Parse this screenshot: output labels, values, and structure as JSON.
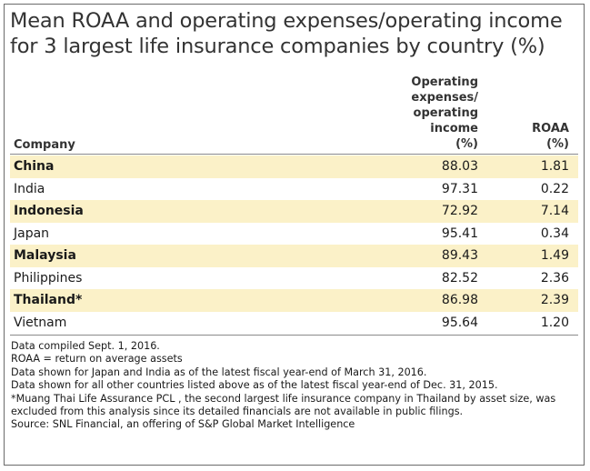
{
  "title_lines": [
    "Mean ROAA and operating expenses/operating income",
    "for 3 largest life insurance companies by country (%)"
  ],
  "chart_data": {
    "type": "table",
    "title": "Mean ROAA and operating expenses/operating income for 3 largest life insurance companies by country (%)",
    "columns": {
      "company": "Company",
      "opex": [
        "Operating",
        "expenses/",
        "operating",
        "income",
        "(%)"
      ],
      "roaa": [
        "ROAA",
        "(%)"
      ]
    },
    "rows": [
      {
        "company": "China",
        "opex": "88.03",
        "roaa": "1.81"
      },
      {
        "company": "India",
        "opex": "97.31",
        "roaa": "0.22"
      },
      {
        "company": "Indonesia",
        "opex": "72.92",
        "roaa": "7.14"
      },
      {
        "company": "Japan",
        "opex": "95.41",
        "roaa": "0.34"
      },
      {
        "company": "Malaysia",
        "opex": "89.43",
        "roaa": "1.49"
      },
      {
        "company": "Philippines",
        "opex": "82.52",
        "roaa": "2.36"
      },
      {
        "company": "Thailand*",
        "opex": "86.98",
        "roaa": "2.39"
      },
      {
        "company": "Vietnam",
        "opex": "95.64",
        "roaa": "1.20"
      }
    ]
  },
  "notes": [
    "Data compiled Sept. 1, 2016.",
    "ROAA = return on average assets",
    "Data shown for Japan and India as of the latest fiscal year-end of March 31, 2016.",
    "Data shown for all other countries listed above as of the latest fiscal year-end of Dec. 31, 2015.",
    "*Muang Thai Life Assurance PCL , the second largest life insurance company in Thailand by asset size, was excluded from this analysis since its detailed financials are not available in public filings.",
    "Source: SNL Financial, an offering of S&P Global Market Intelligence"
  ],
  "colors": {
    "row_highlight": "#fbf1c8",
    "title_text": "#333333",
    "rule": "#8a8a8a"
  }
}
